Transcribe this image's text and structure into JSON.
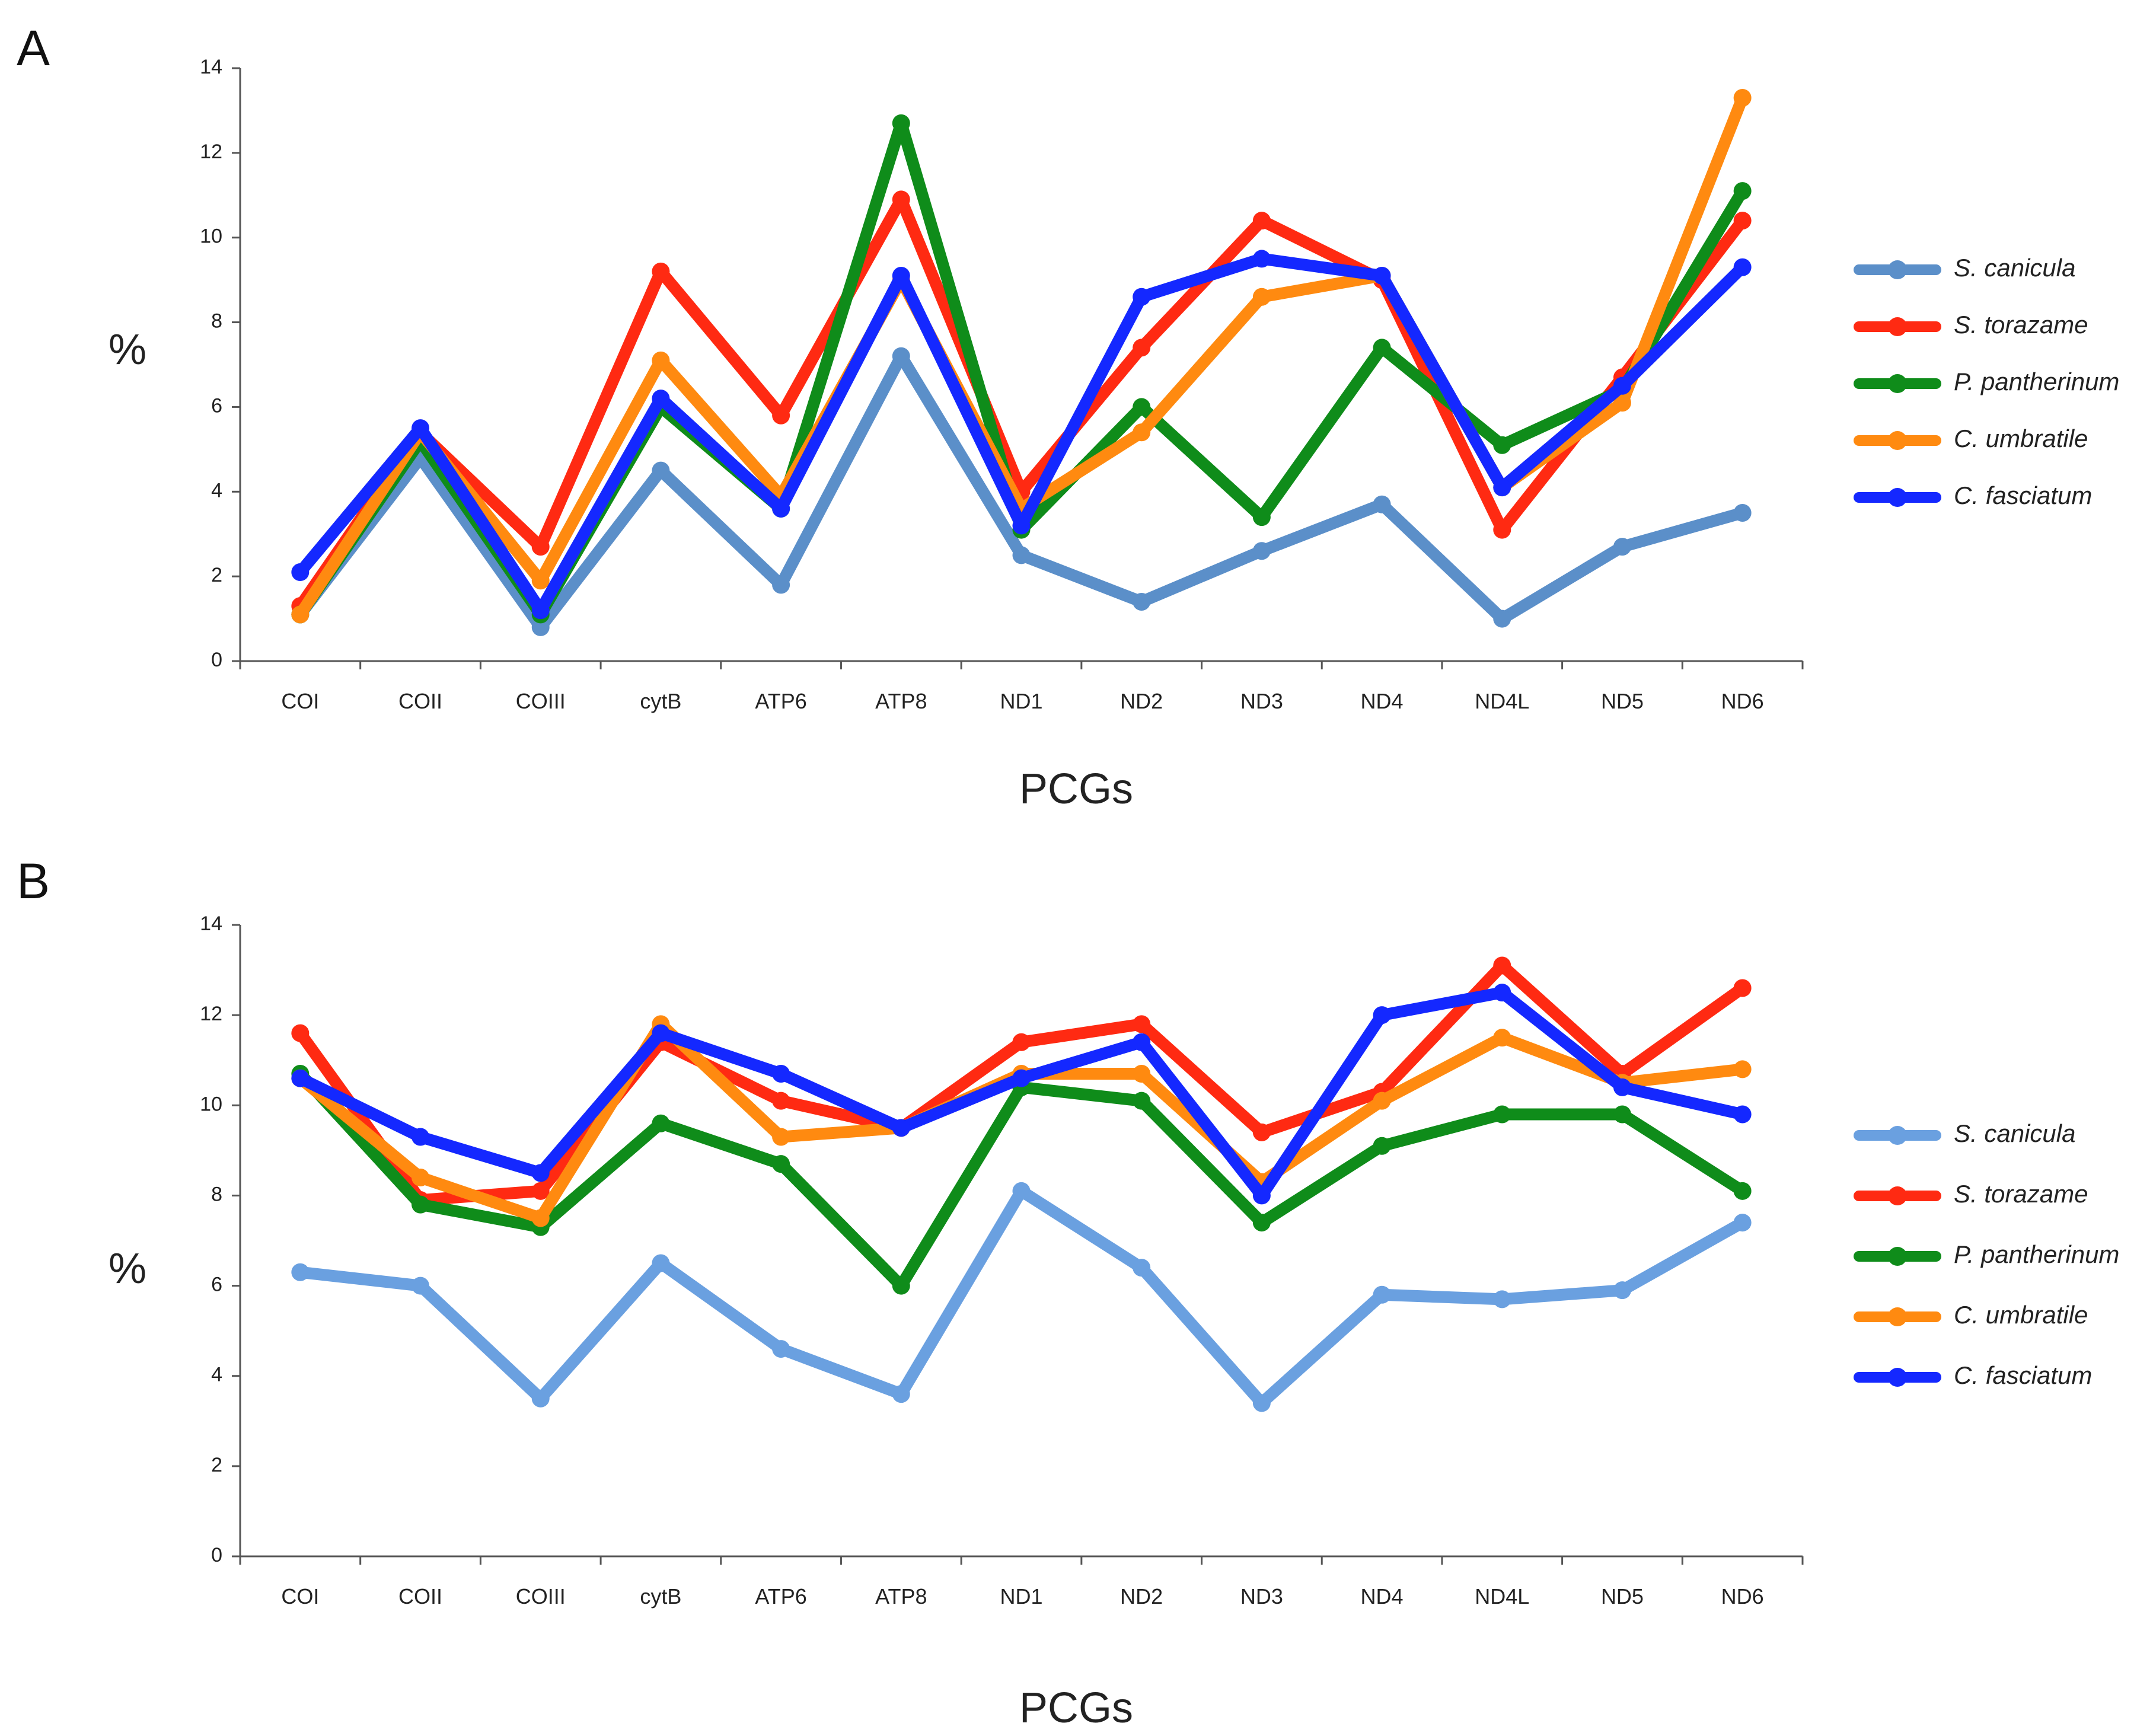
{
  "chart_data": [
    {
      "panel_label": "A",
      "type": "line",
      "categories": [
        "COI",
        "COII",
        "COIII",
        "cytB",
        "ATP6",
        "ATP8",
        "ND1",
        "ND2",
        "ND3",
        "ND4",
        "ND4L",
        "ND5",
        "ND6"
      ],
      "xlabel": "PCGs",
      "ylabel": "%",
      "ylim": [
        0,
        14
      ],
      "yticks": [
        0,
        2,
        4,
        6,
        8,
        10,
        12,
        14
      ],
      "legend_position": "right",
      "grid": false,
      "series": [
        {
          "name": "S. canicula",
          "color": "#5b8fc9",
          "values": [
            1.1,
            4.8,
            0.8,
            4.5,
            1.8,
            7.2,
            2.5,
            1.4,
            2.6,
            3.7,
            1.0,
            2.7,
            3.5
          ]
        },
        {
          "name": "S. torazame",
          "color": "#ff2a12",
          "values": [
            1.3,
            5.4,
            2.7,
            9.2,
            5.8,
            10.9,
            4.0,
            7.4,
            10.4,
            9.0,
            3.1,
            6.7,
            10.4
          ]
        },
        {
          "name": "P. pantherinum",
          "color": "#0f8c1a",
          "values": [
            1.1,
            5.2,
            1.1,
            6.0,
            3.6,
            12.7,
            3.1,
            6.0,
            3.4,
            7.4,
            5.1,
            6.4,
            11.1
          ]
        },
        {
          "name": "C. umbratile",
          "color": "#ff8a10",
          "values": [
            1.1,
            5.4,
            1.9,
            7.1,
            3.9,
            9.0,
            3.6,
            5.4,
            8.6,
            9.1,
            4.1,
            6.1,
            13.3
          ]
        },
        {
          "name": "C. fasciatum",
          "color": "#1428ff",
          "values": [
            2.1,
            5.5,
            1.2,
            6.2,
            3.6,
            9.1,
            3.2,
            8.6,
            9.5,
            9.1,
            4.1,
            6.5,
            9.3
          ]
        }
      ]
    },
    {
      "panel_label": "B",
      "type": "line",
      "categories": [
        "COI",
        "COII",
        "COIII",
        "cytB",
        "ATP6",
        "ATP8",
        "ND1",
        "ND2",
        "ND3",
        "ND4",
        "ND4L",
        "ND5",
        "ND6"
      ],
      "xlabel": "PCGs",
      "ylabel": "%",
      "ylim": [
        0,
        14
      ],
      "yticks": [
        0,
        2,
        4,
        6,
        8,
        10,
        12,
        14
      ],
      "legend_position": "right",
      "grid": false,
      "series": [
        {
          "name": "S. canicula",
          "color": "#6aa0e0",
          "values": [
            6.3,
            6.0,
            3.5,
            6.5,
            4.6,
            3.6,
            8.1,
            6.4,
            3.4,
            5.8,
            5.7,
            5.9,
            7.4
          ]
        },
        {
          "name": "S. torazame",
          "color": "#ff2a12",
          "values": [
            11.6,
            7.9,
            8.1,
            11.4,
            10.1,
            9.5,
            11.4,
            11.8,
            9.4,
            10.3,
            13.1,
            10.7,
            12.6
          ]
        },
        {
          "name": "P. pantherinum",
          "color": "#0f8c1a",
          "values": [
            10.7,
            7.8,
            7.3,
            9.6,
            8.7,
            6.0,
            10.4,
            10.1,
            7.4,
            9.1,
            9.8,
            9.8,
            8.1
          ]
        },
        {
          "name": "C. umbratile",
          "color": "#ff8a10",
          "values": [
            10.6,
            8.4,
            7.5,
            11.8,
            9.3,
            9.5,
            10.7,
            10.7,
            8.3,
            10.1,
            11.5,
            10.5,
            10.8
          ]
        },
        {
          "name": "C. fasciatum",
          "color": "#1428ff",
          "values": [
            10.6,
            9.3,
            8.5,
            11.6,
            10.7,
            9.5,
            10.6,
            11.4,
            8.0,
            12.0,
            12.5,
            10.4,
            9.8
          ]
        }
      ]
    }
  ]
}
